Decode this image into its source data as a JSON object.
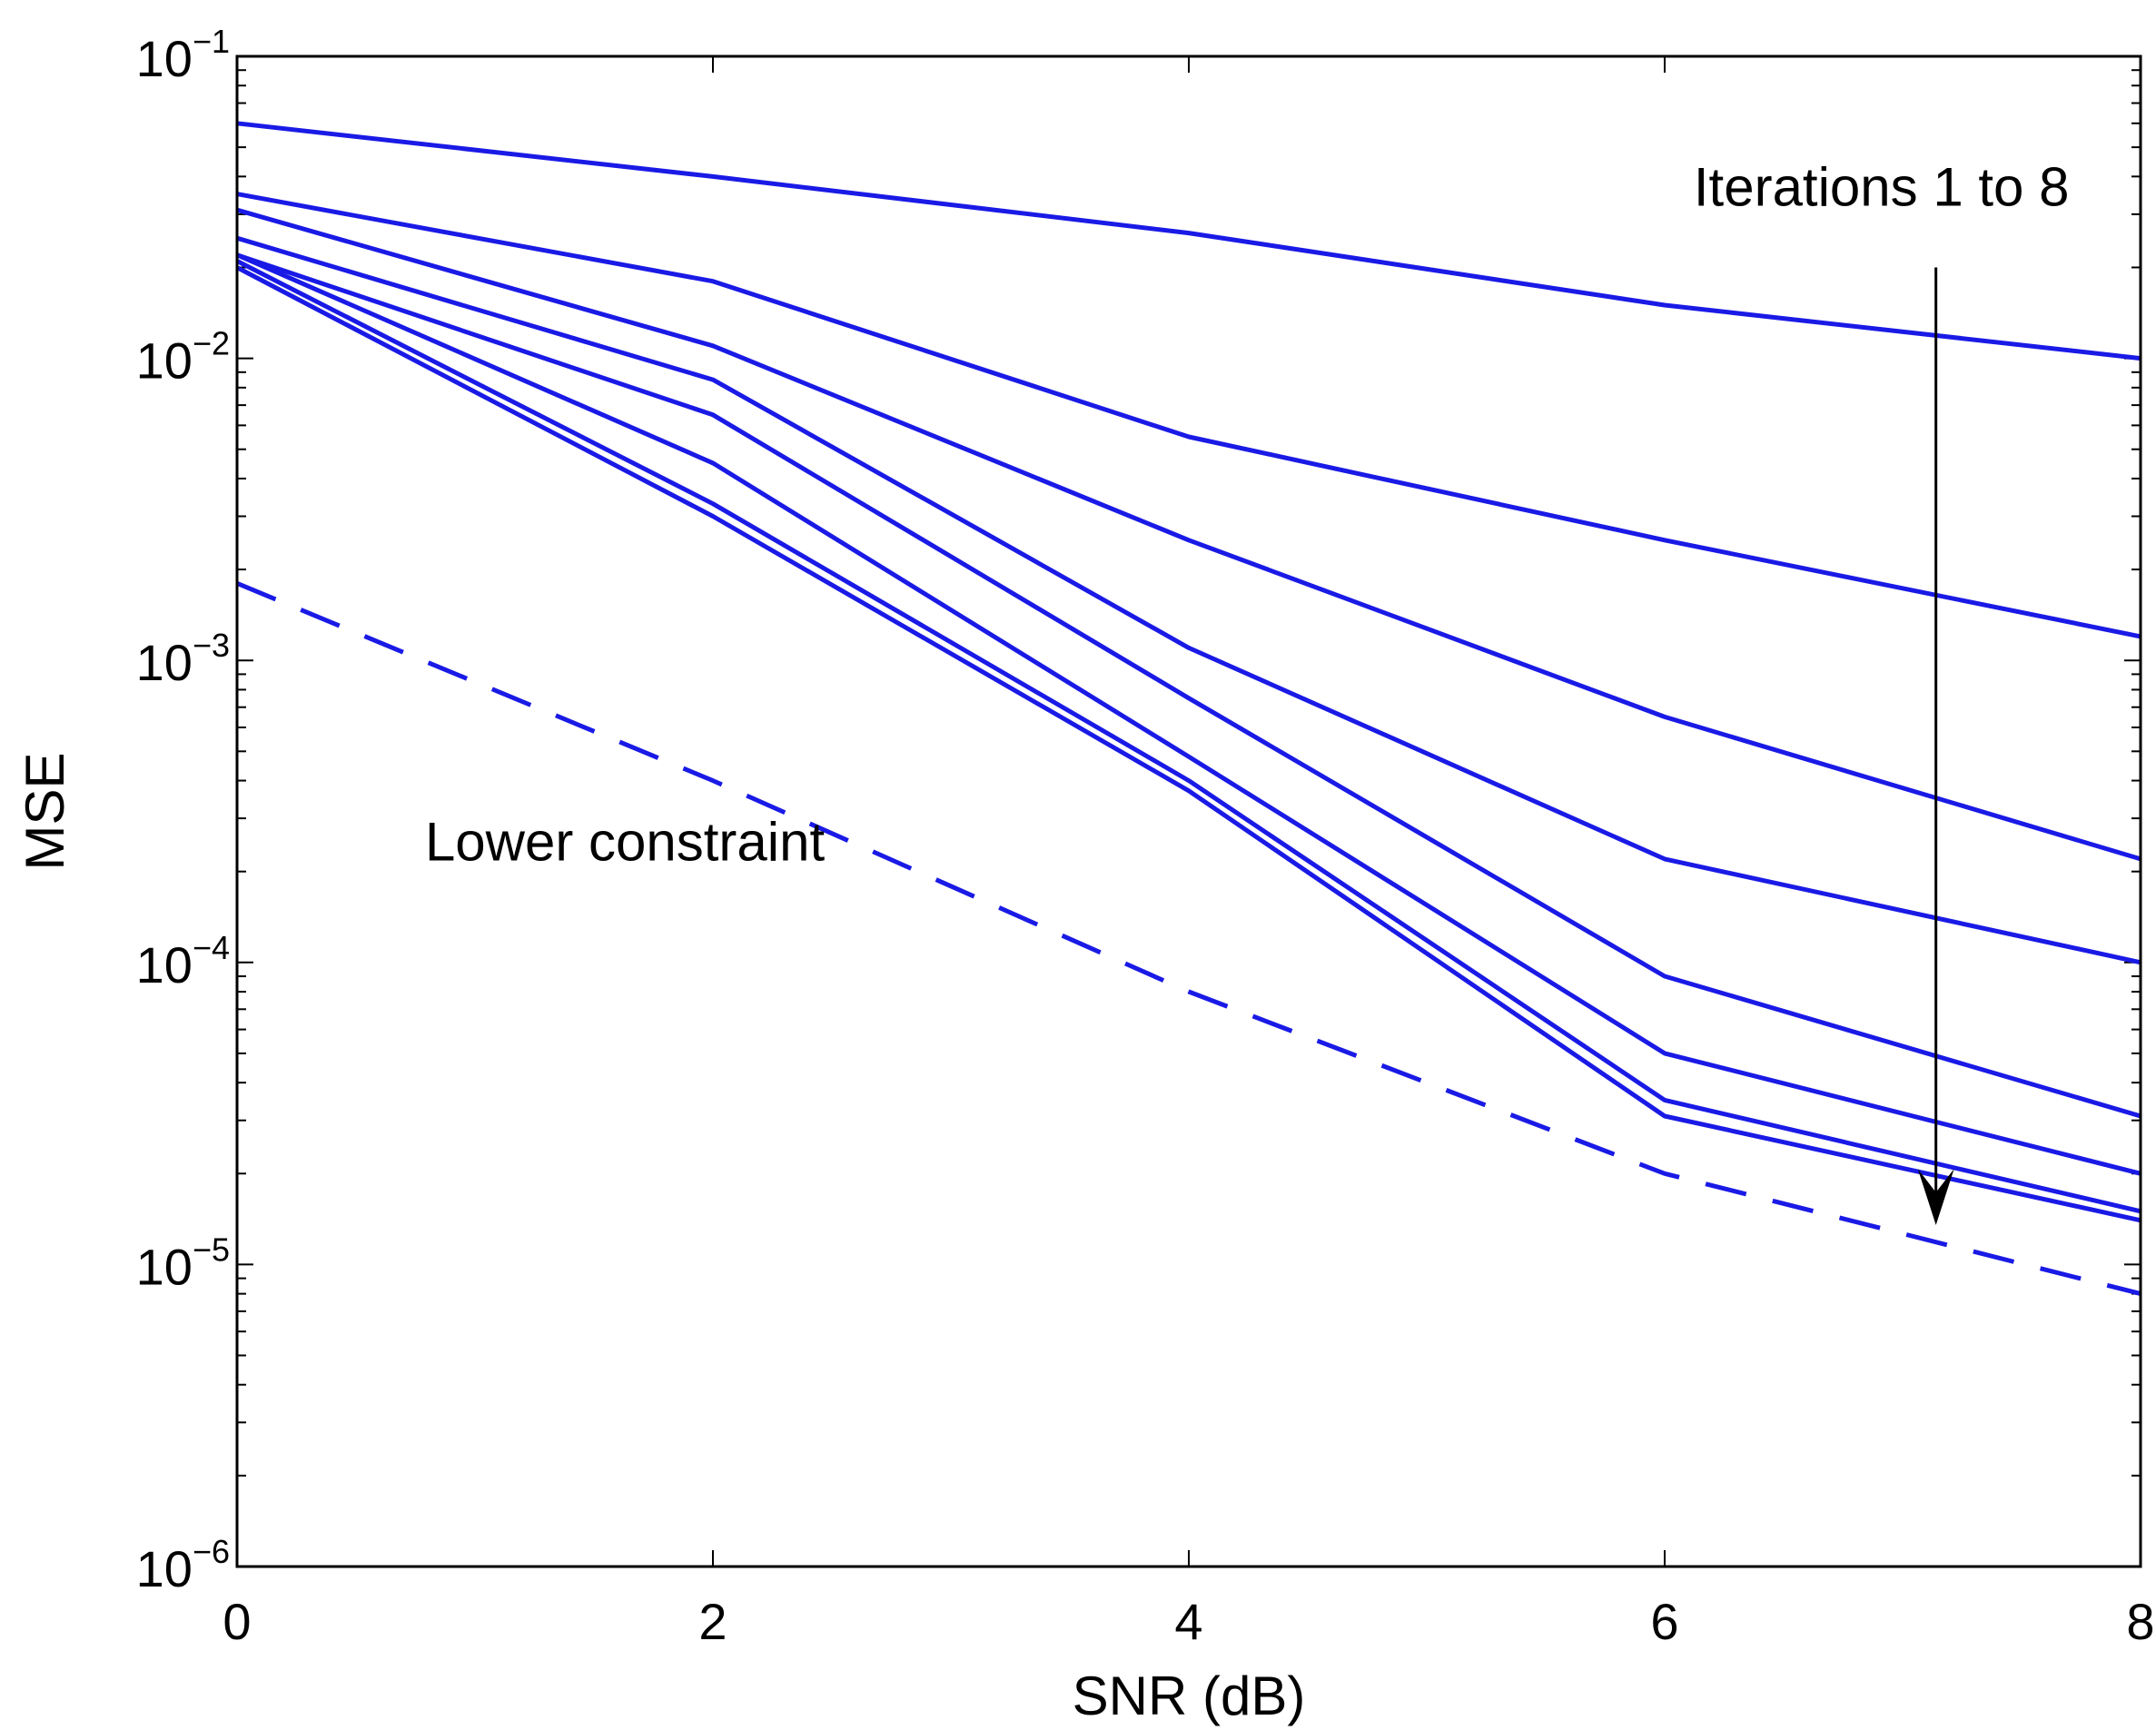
{
  "chart_data": {
    "type": "line",
    "title": "",
    "xlabel": "SNR (dB)",
    "ylabel": "MSE",
    "xlim": [
      0,
      8
    ],
    "ylim": [
      1e-06,
      0.1
    ],
    "yscale": "log",
    "grid": false,
    "x": [
      0,
      2,
      4,
      6,
      8
    ],
    "xticks": [
      "0",
      "2",
      "4",
      "6",
      "8"
    ],
    "yticks": [
      {
        "base": "10",
        "exp": "−1",
        "value": 0.1
      },
      {
        "base": "10",
        "exp": "−2",
        "value": 0.01
      },
      {
        "base": "10",
        "exp": "−3",
        "value": 0.001
      },
      {
        "base": "10",
        "exp": "−4",
        "value": 0.0001
      },
      {
        "base": "10",
        "exp": "−5",
        "value": 1e-05
      },
      {
        "base": "10",
        "exp": "−6",
        "value": 1e-06
      }
    ],
    "series_color": "#1a1ae6",
    "arrow_color": "#000000",
    "series": [
      {
        "name": "Iteration 1",
        "style": "solid",
        "values": [
          0.06,
          0.04,
          0.026,
          0.015,
          0.01
        ]
      },
      {
        "name": "Iteration 2",
        "style": "solid",
        "values": [
          0.035,
          0.018,
          0.0055,
          0.0025,
          0.0012
        ]
      },
      {
        "name": "Iteration 3",
        "style": "solid",
        "values": [
          0.031,
          0.011,
          0.0025,
          0.00065,
          0.00022
        ]
      },
      {
        "name": "Iteration 4",
        "style": "solid",
        "values": [
          0.025,
          0.0085,
          0.0011,
          0.00022,
          0.0001
        ]
      },
      {
        "name": "Iteration 5",
        "style": "solid",
        "values": [
          0.022,
          0.0065,
          0.00075,
          9e-05,
          3.1e-05
        ]
      },
      {
        "name": "Iteration 6",
        "style": "solid",
        "values": [
          0.022,
          0.0045,
          0.00048,
          5e-05,
          2e-05
        ]
      },
      {
        "name": "Iteration 7",
        "style": "solid",
        "values": [
          0.021,
          0.0033,
          0.0004,
          3.5e-05,
          1.5e-05
        ]
      },
      {
        "name": "Iteration 8",
        "style": "solid",
        "values": [
          0.02,
          0.003,
          0.00037,
          3.1e-05,
          1.4e-05
        ]
      },
      {
        "name": "Lower constraint",
        "style": "dashed",
        "values": [
          0.0018,
          0.0004,
          8e-05,
          2e-05,
          8e-06
        ]
      }
    ],
    "annotations": {
      "iterations_label": "Iterations 1 to 8",
      "lower_label": "Lower constraint",
      "arrow_x": 7.14,
      "arrow_from_y": 0.02,
      "arrow_to_y": 1.35e-05
    }
  }
}
